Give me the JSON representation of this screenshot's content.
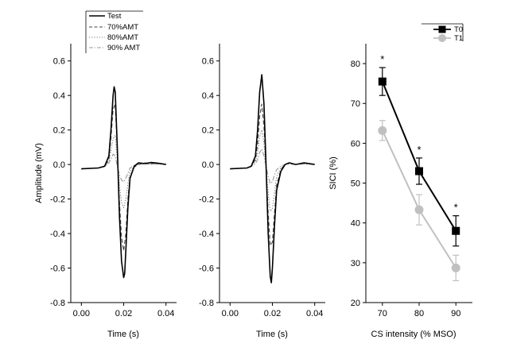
{
  "chart_data": [
    {
      "type": "line",
      "ylabel": "Amplitude (mV)",
      "xlabel": "Time (s)",
      "xlim": [
        -0.005,
        0.045
      ],
      "ylim": [
        -0.8,
        0.7
      ],
      "x_ticks": [
        0.0,
        0.02,
        0.04
      ],
      "x_tick_labels": [
        "0.00",
        "0.02",
        "0.04"
      ],
      "y_ticks": [
        -0.8,
        -0.6,
        -0.4,
        -0.2,
        0.0,
        0.2,
        0.4,
        0.6
      ],
      "y_tick_labels": [
        "-0.8",
        "-0.6",
        "-0.4",
        "-0.2",
        "0.0",
        "0.2",
        "0.4",
        "0.6"
      ],
      "legend": {
        "position": "top-left"
      },
      "series": [
        {
          "name": "Test",
          "style": "solid",
          "color": "#000000",
          "x": [
            0.0,
            0.008,
            0.011,
            0.013,
            0.014,
            0.015,
            0.0155,
            0.016,
            0.017,
            0.018,
            0.019,
            0.02,
            0.0205,
            0.021,
            0.022,
            0.023,
            0.025,
            0.027,
            0.03,
            0.033,
            0.036,
            0.04
          ],
          "y": [
            -0.025,
            -0.02,
            -0.01,
            0.05,
            0.2,
            0.4,
            0.45,
            0.42,
            0.1,
            -0.3,
            -0.56,
            -0.655,
            -0.63,
            -0.5,
            -0.25,
            -0.08,
            -0.01,
            0.01,
            0.005,
            0.012,
            0.008,
            0.0
          ]
        },
        {
          "name": "70%AMT",
          "style": "dashed",
          "color": "#444444",
          "x": [
            0.0,
            0.008,
            0.011,
            0.013,
            0.014,
            0.015,
            0.016,
            0.017,
            0.018,
            0.019,
            0.02,
            0.021,
            0.022,
            0.023,
            0.025,
            0.027,
            0.03,
            0.033,
            0.036,
            0.04
          ],
          "y": [
            -0.025,
            -0.02,
            -0.01,
            0.03,
            0.15,
            0.32,
            0.35,
            0.08,
            -0.22,
            -0.42,
            -0.5,
            -0.4,
            -0.2,
            -0.07,
            -0.015,
            0.0,
            0.01,
            0.005,
            0.008,
            0.0
          ]
        },
        {
          "name": "80%AMT",
          "style": "dotted",
          "color": "#777777",
          "x": [
            0.0,
            0.008,
            0.011,
            0.013,
            0.014,
            0.015,
            0.016,
            0.017,
            0.018,
            0.019,
            0.02,
            0.021,
            0.022,
            0.023,
            0.025,
            0.027,
            0.03,
            0.033,
            0.036,
            0.04
          ],
          "y": [
            -0.025,
            -0.02,
            -0.01,
            0.02,
            0.08,
            0.15,
            0.17,
            0.03,
            -0.12,
            -0.22,
            -0.25,
            -0.2,
            -0.11,
            -0.04,
            -0.01,
            0.0,
            0.005,
            0.003,
            0.005,
            0.0
          ]
        },
        {
          "name": "90% AMT",
          "style": "dashdot",
          "color": "#999999",
          "x": [
            0.0,
            0.008,
            0.011,
            0.013,
            0.014,
            0.015,
            0.016,
            0.017,
            0.018,
            0.019,
            0.02,
            0.021,
            0.022,
            0.023,
            0.025,
            0.027,
            0.03,
            0.033,
            0.036,
            0.04
          ],
          "y": [
            -0.025,
            -0.02,
            -0.012,
            0.01,
            0.03,
            0.06,
            0.05,
            -0.01,
            -0.06,
            -0.09,
            -0.1,
            -0.08,
            -0.05,
            -0.02,
            -0.005,
            0.0,
            0.003,
            0.002,
            0.003,
            0.0
          ]
        }
      ]
    },
    {
      "type": "line",
      "xlabel": "Time (s)",
      "xlim": [
        -0.005,
        0.045
      ],
      "ylim": [
        -0.8,
        0.7
      ],
      "x_ticks": [
        0.0,
        0.02,
        0.04
      ],
      "x_tick_labels": [
        "0.00",
        "0.02",
        "0.04"
      ],
      "y_ticks": [
        -0.8,
        -0.6,
        -0.4,
        -0.2,
        0.0,
        0.2,
        0.4,
        0.6
      ],
      "y_tick_labels": [
        "-0.8",
        "-0.6",
        "-0.4",
        "-0.2",
        "0.0",
        "0.2",
        "0.4",
        "0.6"
      ],
      "series": [
        {
          "style": "solid",
          "color": "#000000",
          "x": [
            0.0,
            0.008,
            0.01,
            0.012,
            0.013,
            0.014,
            0.015,
            0.016,
            0.017,
            0.018,
            0.019,
            0.0195,
            0.02,
            0.021,
            0.022,
            0.024,
            0.026,
            0.028,
            0.031,
            0.035,
            0.04
          ],
          "y": [
            -0.025,
            -0.02,
            -0.01,
            0.05,
            0.2,
            0.42,
            0.52,
            0.35,
            0.0,
            -0.4,
            -0.65,
            -0.685,
            -0.6,
            -0.35,
            -0.15,
            -0.04,
            0.0,
            0.01,
            0.0,
            0.01,
            0.0
          ]
        },
        {
          "style": "dashed",
          "color": "#444444",
          "x": [
            0.0,
            0.008,
            0.01,
            0.012,
            0.013,
            0.014,
            0.015,
            0.016,
            0.017,
            0.018,
            0.019,
            0.02,
            0.021,
            0.022,
            0.024,
            0.026,
            0.028,
            0.031,
            0.035,
            0.04
          ],
          "y": [
            -0.025,
            -0.02,
            -0.01,
            0.03,
            0.12,
            0.28,
            0.35,
            0.22,
            -0.02,
            -0.28,
            -0.47,
            -0.45,
            -0.28,
            -0.12,
            -0.03,
            0.0,
            0.008,
            0.0,
            0.008,
            0.0
          ]
        },
        {
          "style": "dotted",
          "color": "#777777",
          "x": [
            0.0,
            0.008,
            0.01,
            0.012,
            0.013,
            0.014,
            0.015,
            0.016,
            0.017,
            0.018,
            0.019,
            0.02,
            0.021,
            0.022,
            0.024,
            0.026,
            0.028,
            0.031,
            0.035,
            0.04
          ],
          "y": [
            -0.025,
            -0.02,
            -0.01,
            0.02,
            0.07,
            0.16,
            0.2,
            0.12,
            -0.02,
            -0.16,
            -0.27,
            -0.26,
            -0.16,
            -0.07,
            -0.02,
            0.0,
            0.005,
            0.0,
            0.005,
            0.0
          ]
        },
        {
          "style": "dashdot",
          "color": "#999999",
          "x": [
            0.0,
            0.008,
            0.01,
            0.012,
            0.013,
            0.014,
            0.015,
            0.016,
            0.017,
            0.018,
            0.019,
            0.02,
            0.021,
            0.022,
            0.024,
            0.026,
            0.028,
            0.031,
            0.035,
            0.04
          ],
          "y": [
            -0.025,
            -0.02,
            -0.012,
            0.005,
            0.03,
            0.07,
            0.09,
            0.05,
            -0.01,
            -0.07,
            -0.11,
            -0.1,
            -0.06,
            -0.03,
            -0.01,
            0.0,
            0.003,
            0.0,
            0.003,
            0.0
          ]
        }
      ]
    },
    {
      "type": "line",
      "xlabel": "CS intensity (% MSO)",
      "ylabel": "SICI (%)",
      "categories": [
        "70",
        "80",
        "90"
      ],
      "x": [
        70,
        80,
        90
      ],
      "xlim": [
        65.5,
        94.5
      ],
      "ylim": [
        20,
        85
      ],
      "y_ticks": [
        20,
        30,
        40,
        50,
        60,
        70,
        80
      ],
      "y_tick_labels": [
        "20",
        "30",
        "40",
        "50",
        "60",
        "70",
        "80"
      ],
      "legend": {
        "position": "top-right"
      },
      "series": [
        {
          "name": "T0",
          "color": "#000000",
          "marker": "square",
          "values": [
            75.5,
            53.0,
            38.0
          ],
          "error": [
            3.5,
            3.3,
            3.8
          ],
          "significance": [
            "*",
            "*",
            "*"
          ]
        },
        {
          "name": "T1",
          "color": "#c0c0c0",
          "marker": "circle",
          "values": [
            63.2,
            43.3,
            28.7
          ],
          "error": [
            2.5,
            3.8,
            3.2
          ]
        }
      ]
    }
  ]
}
